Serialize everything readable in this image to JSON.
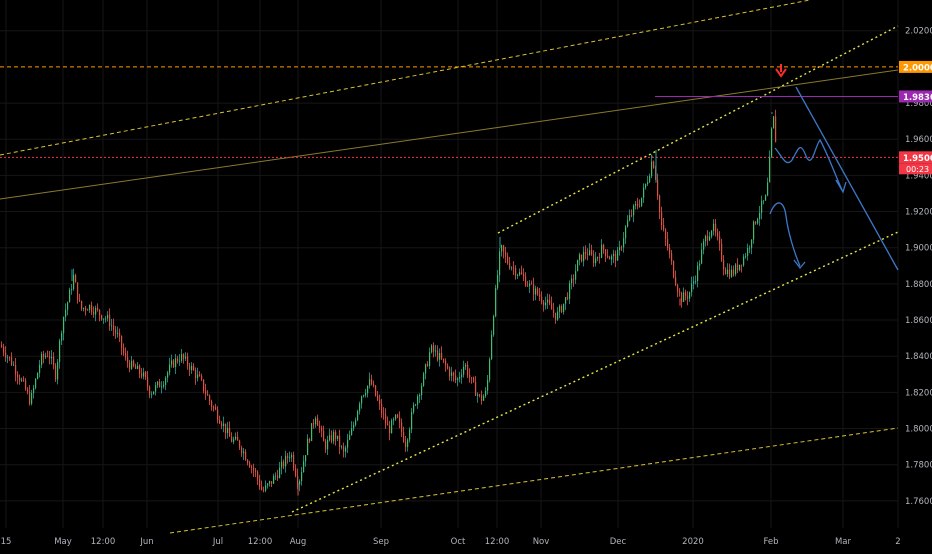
{
  "chart_data": {
    "type": "candlestick",
    "instrument": "",
    "y_axis": {
      "range": [
        1.745,
        2.037
      ],
      "ticks": [
        "2.02000",
        "1.98000",
        "1.96000",
        "1.94000",
        "1.92000",
        "1.90000",
        "1.88000",
        "1.86000",
        "1.84000",
        "1.82000",
        "1.80000",
        "1.78000",
        "1.76000"
      ]
    },
    "x_axis": {
      "ticks": [
        "15",
        "May",
        "12:00",
        "Jun",
        "Jul",
        "12:00",
        "Aug",
        "Sep",
        "Oct",
        "12:00",
        "Nov",
        "Dec",
        "2020",
        "Feb",
        "Mar",
        "2"
      ]
    },
    "grid": true,
    "price_labels": [
      {
        "value": 2.0,
        "text": "2.00000",
        "color": "#ff9800"
      },
      {
        "value": 1.98366,
        "text": "1.98366",
        "color": "#9c27b0"
      },
      {
        "value": 1.95,
        "text": "1.95000",
        "color": "#f23645"
      }
    ],
    "countdown": "00:23",
    "price_path": [
      [
        0,
        1.846
      ],
      [
        12,
        1.836
      ],
      [
        22,
        1.825
      ],
      [
        30,
        1.815
      ],
      [
        40,
        1.838
      ],
      [
        48,
        1.842
      ],
      [
        55,
        1.83
      ],
      [
        62,
        1.86
      ],
      [
        68,
        1.872
      ],
      [
        73,
        1.884
      ],
      [
        80,
        1.866
      ],
      [
        88,
        1.868
      ],
      [
        98,
        1.864
      ],
      [
        108,
        1.86
      ],
      [
        118,
        1.85
      ],
      [
        125,
        1.838
      ],
      [
        132,
        1.834
      ],
      [
        142,
        1.83
      ],
      [
        150,
        1.82
      ],
      [
        162,
        1.826
      ],
      [
        172,
        1.836
      ],
      [
        180,
        1.84
      ],
      [
        190,
        1.834
      ],
      [
        200,
        1.826
      ],
      [
        210,
        1.814
      ],
      [
        220,
        1.805
      ],
      [
        230,
        1.794
      ],
      [
        238,
        1.792
      ],
      [
        246,
        1.784
      ],
      [
        255,
        1.775
      ],
      [
        262,
        1.765
      ],
      [
        270,
        1.77
      ],
      [
        280,
        1.778
      ],
      [
        290,
        1.787
      ],
      [
        298,
        1.77
      ],
      [
        306,
        1.79
      ],
      [
        315,
        1.808
      ],
      [
        324,
        1.79
      ],
      [
        334,
        1.797
      ],
      [
        343,
        1.786
      ],
      [
        352,
        1.8
      ],
      [
        360,
        1.818
      ],
      [
        370,
        1.826
      ],
      [
        379,
        1.812
      ],
      [
        388,
        1.799
      ],
      [
        396,
        1.806
      ],
      [
        405,
        1.792
      ],
      [
        414,
        1.814
      ],
      [
        422,
        1.826
      ],
      [
        430,
        1.844
      ],
      [
        438,
        1.84
      ],
      [
        448,
        1.832
      ],
      [
        456,
        1.826
      ],
      [
        464,
        1.836
      ],
      [
        472,
        1.824
      ],
      [
        480,
        1.816
      ],
      [
        486,
        1.82
      ],
      [
        492,
        1.86
      ],
      [
        497,
        1.885
      ],
      [
        500,
        1.9
      ],
      [
        506,
        1.893
      ],
      [
        514,
        1.888
      ],
      [
        522,
        1.884
      ],
      [
        530,
        1.878
      ],
      [
        538,
        1.874
      ],
      [
        548,
        1.868
      ],
      [
        556,
        1.862
      ],
      [
        564,
        1.87
      ],
      [
        572,
        1.882
      ],
      [
        578,
        1.893
      ],
      [
        586,
        1.898
      ],
      [
        594,
        1.893
      ],
      [
        602,
        1.9
      ],
      [
        610,
        1.894
      ],
      [
        618,
        1.896
      ],
      [
        626,
        1.913
      ],
      [
        634,
        1.922
      ],
      [
        640,
        1.926
      ],
      [
        648,
        1.94
      ],
      [
        652,
        1.95
      ],
      [
        656,
        1.936
      ],
      [
        660,
        1.914
      ],
      [
        668,
        1.898
      ],
      [
        674,
        1.884
      ],
      [
        680,
        1.872
      ],
      [
        688,
        1.874
      ],
      [
        696,
        1.886
      ],
      [
        704,
        1.904
      ],
      [
        712,
        1.912
      ],
      [
        718,
        1.902
      ],
      [
        724,
        1.888
      ],
      [
        732,
        1.886
      ],
      [
        740,
        1.892
      ],
      [
        748,
        1.9
      ],
      [
        754,
        1.914
      ],
      [
        760,
        1.922
      ],
      [
        766,
        1.928
      ],
      [
        770,
        1.954
      ],
      [
        772,
        1.974
      ],
      [
        774,
        1.968
      ],
      [
        776,
        1.952
      ]
    ],
    "wick_peaks": [
      [
        72,
        1.888
      ],
      [
        298,
        1.763
      ],
      [
        500,
        1.906
      ],
      [
        652,
        1.951
      ],
      [
        656,
        1.954
      ],
      [
        680,
        1.868
      ],
      [
        772,
        1.975
      ]
    ]
  }
}
